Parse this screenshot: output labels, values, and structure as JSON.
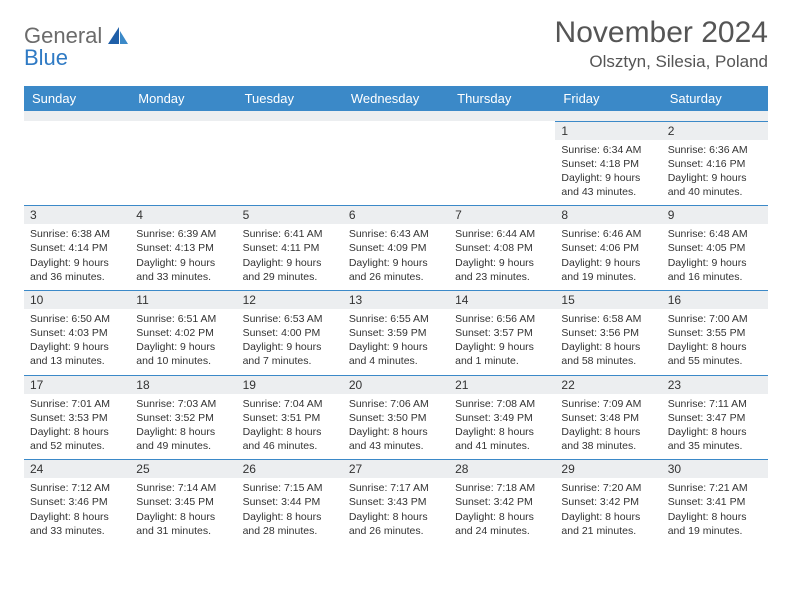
{
  "brand": {
    "line1": "General",
    "line2": "Blue"
  },
  "title": "November 2024",
  "location": "Olsztyn, Silesia, Poland",
  "dow": [
    "Sunday",
    "Monday",
    "Tuesday",
    "Wednesday",
    "Thursday",
    "Friday",
    "Saturday"
  ],
  "colors": {
    "header_bg": "#3b89c8",
    "header_text": "#ffffff",
    "daynum_bg": "#eceef0",
    "page_bg": "#ffffff",
    "rule": "#3b89c8",
    "title_color": "#555555",
    "logo_gray": "#6b6b6b",
    "logo_blue": "#2f7ac4"
  },
  "weeks": [
    [
      null,
      null,
      null,
      null,
      null,
      {
        "n": "1",
        "sunrise": "Sunrise: 6:34 AM",
        "sunset": "Sunset: 4:18 PM",
        "daylight": "Daylight: 9 hours and 43 minutes."
      },
      {
        "n": "2",
        "sunrise": "Sunrise: 6:36 AM",
        "sunset": "Sunset: 4:16 PM",
        "daylight": "Daylight: 9 hours and 40 minutes."
      }
    ],
    [
      {
        "n": "3",
        "sunrise": "Sunrise: 6:38 AM",
        "sunset": "Sunset: 4:14 PM",
        "daylight": "Daylight: 9 hours and 36 minutes."
      },
      {
        "n": "4",
        "sunrise": "Sunrise: 6:39 AM",
        "sunset": "Sunset: 4:13 PM",
        "daylight": "Daylight: 9 hours and 33 minutes."
      },
      {
        "n": "5",
        "sunrise": "Sunrise: 6:41 AM",
        "sunset": "Sunset: 4:11 PM",
        "daylight": "Daylight: 9 hours and 29 minutes."
      },
      {
        "n": "6",
        "sunrise": "Sunrise: 6:43 AM",
        "sunset": "Sunset: 4:09 PM",
        "daylight": "Daylight: 9 hours and 26 minutes."
      },
      {
        "n": "7",
        "sunrise": "Sunrise: 6:44 AM",
        "sunset": "Sunset: 4:08 PM",
        "daylight": "Daylight: 9 hours and 23 minutes."
      },
      {
        "n": "8",
        "sunrise": "Sunrise: 6:46 AM",
        "sunset": "Sunset: 4:06 PM",
        "daylight": "Daylight: 9 hours and 19 minutes."
      },
      {
        "n": "9",
        "sunrise": "Sunrise: 6:48 AM",
        "sunset": "Sunset: 4:05 PM",
        "daylight": "Daylight: 9 hours and 16 minutes."
      }
    ],
    [
      {
        "n": "10",
        "sunrise": "Sunrise: 6:50 AM",
        "sunset": "Sunset: 4:03 PM",
        "daylight": "Daylight: 9 hours and 13 minutes."
      },
      {
        "n": "11",
        "sunrise": "Sunrise: 6:51 AM",
        "sunset": "Sunset: 4:02 PM",
        "daylight": "Daylight: 9 hours and 10 minutes."
      },
      {
        "n": "12",
        "sunrise": "Sunrise: 6:53 AM",
        "sunset": "Sunset: 4:00 PM",
        "daylight": "Daylight: 9 hours and 7 minutes."
      },
      {
        "n": "13",
        "sunrise": "Sunrise: 6:55 AM",
        "sunset": "Sunset: 3:59 PM",
        "daylight": "Daylight: 9 hours and 4 minutes."
      },
      {
        "n": "14",
        "sunrise": "Sunrise: 6:56 AM",
        "sunset": "Sunset: 3:57 PM",
        "daylight": "Daylight: 9 hours and 1 minute."
      },
      {
        "n": "15",
        "sunrise": "Sunrise: 6:58 AM",
        "sunset": "Sunset: 3:56 PM",
        "daylight": "Daylight: 8 hours and 58 minutes."
      },
      {
        "n": "16",
        "sunrise": "Sunrise: 7:00 AM",
        "sunset": "Sunset: 3:55 PM",
        "daylight": "Daylight: 8 hours and 55 minutes."
      }
    ],
    [
      {
        "n": "17",
        "sunrise": "Sunrise: 7:01 AM",
        "sunset": "Sunset: 3:53 PM",
        "daylight": "Daylight: 8 hours and 52 minutes."
      },
      {
        "n": "18",
        "sunrise": "Sunrise: 7:03 AM",
        "sunset": "Sunset: 3:52 PM",
        "daylight": "Daylight: 8 hours and 49 minutes."
      },
      {
        "n": "19",
        "sunrise": "Sunrise: 7:04 AM",
        "sunset": "Sunset: 3:51 PM",
        "daylight": "Daylight: 8 hours and 46 minutes."
      },
      {
        "n": "20",
        "sunrise": "Sunrise: 7:06 AM",
        "sunset": "Sunset: 3:50 PM",
        "daylight": "Daylight: 8 hours and 43 minutes."
      },
      {
        "n": "21",
        "sunrise": "Sunrise: 7:08 AM",
        "sunset": "Sunset: 3:49 PM",
        "daylight": "Daylight: 8 hours and 41 minutes."
      },
      {
        "n": "22",
        "sunrise": "Sunrise: 7:09 AM",
        "sunset": "Sunset: 3:48 PM",
        "daylight": "Daylight: 8 hours and 38 minutes."
      },
      {
        "n": "23",
        "sunrise": "Sunrise: 7:11 AM",
        "sunset": "Sunset: 3:47 PM",
        "daylight": "Daylight: 8 hours and 35 minutes."
      }
    ],
    [
      {
        "n": "24",
        "sunrise": "Sunrise: 7:12 AM",
        "sunset": "Sunset: 3:46 PM",
        "daylight": "Daylight: 8 hours and 33 minutes."
      },
      {
        "n": "25",
        "sunrise": "Sunrise: 7:14 AM",
        "sunset": "Sunset: 3:45 PM",
        "daylight": "Daylight: 8 hours and 31 minutes."
      },
      {
        "n": "26",
        "sunrise": "Sunrise: 7:15 AM",
        "sunset": "Sunset: 3:44 PM",
        "daylight": "Daylight: 8 hours and 28 minutes."
      },
      {
        "n": "27",
        "sunrise": "Sunrise: 7:17 AM",
        "sunset": "Sunset: 3:43 PM",
        "daylight": "Daylight: 8 hours and 26 minutes."
      },
      {
        "n": "28",
        "sunrise": "Sunrise: 7:18 AM",
        "sunset": "Sunset: 3:42 PM",
        "daylight": "Daylight: 8 hours and 24 minutes."
      },
      {
        "n": "29",
        "sunrise": "Sunrise: 7:20 AM",
        "sunset": "Sunset: 3:42 PM",
        "daylight": "Daylight: 8 hours and 21 minutes."
      },
      {
        "n": "30",
        "sunrise": "Sunrise: 7:21 AM",
        "sunset": "Sunset: 3:41 PM",
        "daylight": "Daylight: 8 hours and 19 minutes."
      }
    ]
  ]
}
